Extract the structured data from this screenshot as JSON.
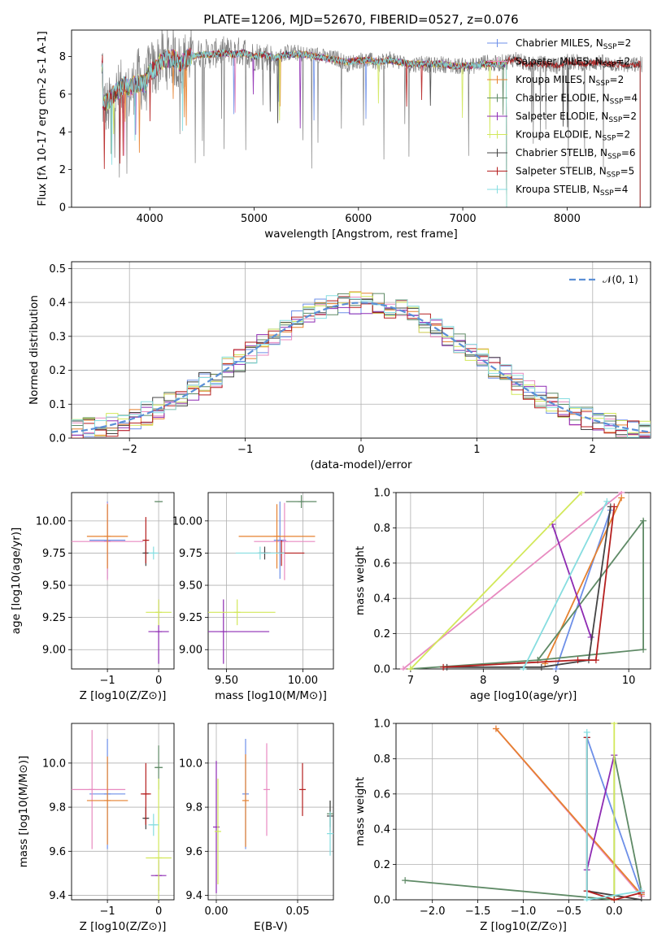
{
  "figure": {
    "title": "PLATE=1206, MJD=52670, FIBERID=0527, z=0.076"
  },
  "series_styles": [
    {
      "name": "Chabrier MILES, N$_{SSP}$=2",
      "legend_text": "Chabrier MILES, N",
      "legend_sub": "SSP",
      "legend_tail": "=2",
      "color": "#6d8fe8"
    },
    {
      "name": "Salpeter MILES, N$_{SSP}$=2",
      "legend_text": "Salpeter MILES, N",
      "legend_sub": "SSP",
      "legend_tail": "=2",
      "color": "#e88ac0"
    },
    {
      "name": "Kroupa MILES, N$_{SSP}$=2",
      "legend_text": "Kroupa MILES, N",
      "legend_sub": "SSP",
      "legend_tail": "=2",
      "color": "#e6812f"
    },
    {
      "name": "Chabrier ELODIE, N$_{SSP}$=4",
      "legend_text": "Chabrier ELODIE, N",
      "legend_sub": "SSP",
      "legend_tail": "=4",
      "color": "#5f8a66"
    },
    {
      "name": "Salpeter ELODIE, N$_{SSP}$=2",
      "legend_text": "Salpeter ELODIE, N",
      "legend_sub": "SSP",
      "legend_tail": "=2",
      "color": "#8e2bb3"
    },
    {
      "name": "Kroupa ELODIE, N$_{SSP}$=2",
      "legend_text": "Kroupa ELODIE, N",
      "legend_sub": "SSP",
      "legend_tail": "=2",
      "color": "#d2e85a"
    },
    {
      "name": "Chabrier STELIB, N$_{SSP}$=6",
      "legend_text": "Chabrier STELIB, N",
      "legend_sub": "SSP",
      "legend_tail": "=6",
      "color": "#444444"
    },
    {
      "name": "Salpeter STELIB, N$_{SSP}$=5",
      "legend_text": "Salpeter STELIB, N",
      "legend_sub": "SSP",
      "legend_tail": "=5",
      "color": "#b51f1f"
    },
    {
      "name": "Kroupa STELIB, N$_{SSP}$=4",
      "legend_text": "Kroupa STELIB, N",
      "legend_sub": "SSP",
      "legend_tail": "=4",
      "color": "#86dde0"
    }
  ],
  "chart_data": [
    {
      "id": "spectrum",
      "type": "line",
      "xlabel": "wavelength [Angstrom, rest frame]",
      "ylabel": "Flux [$f_\\lambda 10^{-17}$ erg cm$^{-2}$ s$^{-1}$ A$^{-1}$]",
      "xlim": [
        3250,
        8800
      ],
      "ylim": [
        0,
        9.4
      ],
      "xticks": [
        4000,
        5000,
        6000,
        7000,
        8000
      ],
      "yticks": [
        0,
        2,
        4,
        6,
        8
      ],
      "grid": false,
      "legend_loc": "right",
      "data_color": "#808080",
      "data_points": [
        [
          3550,
          5.6
        ],
        [
          3600,
          5.2
        ],
        [
          3650,
          5.9
        ],
        [
          3700,
          6.1
        ],
        [
          3750,
          6.4
        ],
        [
          3800,
          6.0
        ],
        [
          3850,
          6.5
        ],
        [
          3900,
          7.0
        ],
        [
          3950,
          6.2
        ],
        [
          4000,
          7.4
        ],
        [
          4050,
          7.2
        ],
        [
          4100,
          8.0
        ],
        [
          4150,
          7.7
        ],
        [
          4200,
          8.1
        ],
        [
          4250,
          7.8
        ],
        [
          4300,
          7.5
        ],
        [
          4350,
          7.9
        ],
        [
          4400,
          8.1
        ],
        [
          4500,
          8.2
        ],
        [
          4600,
          8.1
        ],
        [
          4700,
          8.3
        ],
        [
          4800,
          8.2
        ],
        [
          4900,
          8.3
        ],
        [
          5000,
          8.0
        ],
        [
          5100,
          8.1
        ],
        [
          5200,
          7.8
        ],
        [
          5300,
          8.2
        ],
        [
          5400,
          8.2
        ],
        [
          5500,
          8.1
        ],
        [
          5600,
          8.1
        ],
        [
          5700,
          7.9
        ],
        [
          5800,
          7.9
        ],
        [
          5900,
          7.6
        ],
        [
          6000,
          7.8
        ],
        [
          6100,
          7.8
        ],
        [
          6200,
          7.6
        ],
        [
          6300,
          7.9
        ],
        [
          6400,
          7.7
        ],
        [
          6500,
          7.5
        ],
        [
          6600,
          7.7
        ],
        [
          6700,
          7.5
        ],
        [
          6800,
          7.6
        ],
        [
          6900,
          7.5
        ],
        [
          7000,
          7.5
        ],
        [
          7100,
          7.5
        ],
        [
          7200,
          7.7
        ],
        [
          7300,
          7.6
        ],
        [
          7400,
          7.7
        ],
        [
          7500,
          7.9
        ],
        [
          7600,
          7.6
        ],
        [
          7700,
          7.6
        ],
        [
          7800,
          7.6
        ],
        [
          7900,
          7.5
        ],
        [
          8000,
          7.7
        ],
        [
          8100,
          7.7
        ],
        [
          8200,
          7.6
        ],
        [
          8300,
          7.7
        ],
        [
          8400,
          7.6
        ],
        [
          8500,
          7.6
        ],
        [
          8600,
          7.5
        ],
        [
          8700,
          7.6
        ]
      ],
      "model_points": [
        [
          3550,
          5.6
        ],
        [
          3600,
          5.6
        ],
        [
          3650,
          6.0
        ],
        [
          3700,
          6.2
        ],
        [
          3750,
          6.5
        ],
        [
          3800,
          6.3
        ],
        [
          3850,
          6.5
        ],
        [
          3900,
          6.6
        ],
        [
          3950,
          6.5
        ],
        [
          4000,
          7.2
        ],
        [
          4050,
          7.3
        ],
        [
          4100,
          7.7
        ],
        [
          4150,
          7.8
        ],
        [
          4200,
          7.9
        ],
        [
          4250,
          7.9
        ],
        [
          4300,
          7.6
        ],
        [
          4350,
          7.9
        ],
        [
          4400,
          8.0
        ],
        [
          4500,
          8.1
        ],
        [
          4600,
          8.1
        ],
        [
          4700,
          8.2
        ],
        [
          4800,
          8.1
        ],
        [
          4900,
          8.2
        ],
        [
          5000,
          8.0
        ],
        [
          5100,
          8.1
        ],
        [
          5200,
          7.9
        ],
        [
          5300,
          8.1
        ],
        [
          5400,
          8.1
        ],
        [
          5500,
          8.1
        ],
        [
          5600,
          8.0
        ],
        [
          5700,
          7.9
        ],
        [
          5800,
          7.8
        ],
        [
          5900,
          7.7
        ],
        [
          6000,
          7.8
        ],
        [
          6100,
          7.8
        ],
        [
          6200,
          7.7
        ],
        [
          6300,
          7.8
        ],
        [
          6400,
          7.7
        ],
        [
          6500,
          7.6
        ],
        [
          6600,
          7.6
        ],
        [
          6700,
          7.6
        ],
        [
          6800,
          7.6
        ],
        [
          6900,
          7.5
        ],
        [
          7000,
          7.5
        ],
        [
          7100,
          7.5
        ],
        [
          7200,
          7.6
        ],
        [
          7300,
          7.6
        ],
        [
          7400,
          7.6
        ]
      ]
    },
    {
      "id": "residuals",
      "type": "area",
      "xlabel": "(data-model)/error",
      "ylabel": "Normed distribution",
      "xlim": [
        -2.5,
        2.5
      ],
      "ylim": [
        0,
        0.52
      ],
      "xticks": [
        -2,
        -1,
        0,
        1,
        2
      ],
      "yticks": [
        0.0,
        0.1,
        0.2,
        0.3,
        0.4,
        0.5
      ],
      "grid": true,
      "legend": "$\\mathcal{N}(0,1)$",
      "legend_loc": "top-right",
      "normal_color": "#5b8fd6",
      "bin_width": 0.1
    },
    {
      "id": "age_vs_z",
      "type": "scatter",
      "xlabel": "Z [log$_{10}$(Z/Z$_\\odot$)]",
      "ylabel": "age  [log$_{10}$(age/yr)]",
      "xlim": [
        -1.7,
        0.3
      ],
      "ylim": [
        8.85,
        10.22
      ],
      "xticks": [
        -1,
        0
      ],
      "yticks": [
        9.0,
        9.25,
        9.5,
        9.75,
        10.0
      ],
      "grid": true,
      "points": [
        {
          "series": 0,
          "x": -1.0,
          "y": 9.85,
          "xerr": 0.35,
          "yerr": 0.3
        },
        {
          "series": 1,
          "x": -1.0,
          "y": 9.84,
          "xerr": 0.7,
          "yerr": 0.3
        },
        {
          "series": 2,
          "x": -1.0,
          "y": 9.88,
          "xerr": 0.4,
          "yerr": 0.25
        },
        {
          "series": 3,
          "x": 0.0,
          "y": 10.15,
          "xerr": 0.08,
          "yerr": 0.0
        },
        {
          "series": 4,
          "x": 0.0,
          "y": 9.14,
          "xerr": 0.2,
          "yerr": 0.25
        },
        {
          "series": 5,
          "x": 0.0,
          "y": 9.29,
          "xerr": 0.25,
          "yerr": 0.1
        },
        {
          "series": 6,
          "x": -0.25,
          "y": 9.75,
          "xerr": 0.05,
          "yerr": 0.1
        },
        {
          "series": 7,
          "x": -0.25,
          "y": 9.85,
          "xerr": 0.05,
          "yerr": 0.18
        },
        {
          "series": 8,
          "x": -0.1,
          "y": 9.75,
          "xerr": 0.1,
          "yerr": 0.05
        }
      ]
    },
    {
      "id": "age_vs_mass",
      "type": "scatter",
      "xlabel": "mass [log$_{10}$(M/M$_\\odot$)]",
      "ylabel": "",
      "xlim": [
        9.38,
        10.2
      ],
      "ylim": [
        8.85,
        10.22
      ],
      "xticks": [
        9.5,
        10.0
      ],
      "yticks": [
        9.0,
        9.25,
        9.5,
        9.75,
        10.0
      ],
      "grid": true,
      "points": [
        {
          "series": 0,
          "x": 9.85,
          "y": 9.85,
          "xerr": 0.04,
          "yerr": 0.3
        },
        {
          "series": 1,
          "x": 9.88,
          "y": 9.84,
          "xerr": 0.2,
          "yerr": 0.3
        },
        {
          "series": 2,
          "x": 9.83,
          "y": 9.88,
          "xerr": 0.25,
          "yerr": 0.25
        },
        {
          "series": 3,
          "x": 9.99,
          "y": 10.15,
          "xerr": 0.1,
          "yerr": 0.05
        },
        {
          "series": 4,
          "x": 9.48,
          "y": 9.14,
          "xerr": 0.3,
          "yerr": 0.25
        },
        {
          "series": 5,
          "x": 9.57,
          "y": 9.29,
          "xerr": 0.25,
          "yerr": 0.1
        },
        {
          "series": 6,
          "x": 9.75,
          "y": 9.75,
          "xerr": 0.04,
          "yerr": 0.05
        },
        {
          "series": 7,
          "x": 9.86,
          "y": 9.75,
          "xerr": 0.15,
          "yerr": 0.1
        },
        {
          "series": 8,
          "x": 9.72,
          "y": 9.75,
          "xerr": 0.16,
          "yerr": 0.05
        }
      ]
    },
    {
      "id": "weight_vs_age",
      "type": "line",
      "xlabel": "age  [log$_{10}$(age/yr)]",
      "ylabel": "mass weight",
      "xlim": [
        6.8,
        10.3
      ],
      "ylim": [
        0,
        1.0
      ],
      "xticks": [
        7,
        8,
        9,
        10
      ],
      "yticks": [
        0.0,
        0.2,
        0.4,
        0.6,
        0.8,
        1.0
      ],
      "grid": true,
      "series": [
        {
          "series": 0,
          "x": [
            9.0,
            9.75
          ],
          "y": [
            0.0,
            0.9
          ]
        },
        {
          "series": 1,
          "x": [
            6.9,
            9.9
          ],
          "y": [
            0.0,
            1.0
          ]
        },
        {
          "series": 2,
          "x": [
            8.85,
            9.9
          ],
          "y": [
            0.03,
            0.97
          ]
        },
        {
          "series": 3,
          "x": [
            8.75,
            10.2,
            10.2,
            8.75,
            7.0
          ],
          "y": [
            0.05,
            0.84,
            0.11,
            0.05,
            0.0
          ]
        },
        {
          "series": 4,
          "x": [
            8.95,
            9.48
          ],
          "y": [
            0.82,
            0.18
          ]
        },
        {
          "series": 5,
          "x": [
            7.0,
            9.35
          ],
          "y": [
            0.0,
            1.0
          ]
        },
        {
          "series": 6,
          "x": [
            7.5,
            8.8,
            9.45,
            9.75
          ],
          "y": [
            0.01,
            0.01,
            0.05,
            0.92
          ]
        },
        {
          "series": 7,
          "x": [
            7.45,
            9.3,
            9.55,
            9.8
          ],
          "y": [
            0.01,
            0.05,
            0.05,
            0.92
          ]
        },
        {
          "series": 8,
          "x": [
            8.55,
            9.7
          ],
          "y": [
            0.0,
            0.95
          ]
        }
      ]
    },
    {
      "id": "mass_vs_z",
      "type": "scatter",
      "xlabel": "Z [log$_{10}$(Z/Z$_\\odot$)]",
      "ylabel": "mass [log$_{10}$(M/M$_\\odot$)]",
      "xlim": [
        -1.7,
        0.3
      ],
      "ylim": [
        9.38,
        10.18
      ],
      "xticks": [
        -1,
        0
      ],
      "yticks": [
        9.4,
        9.6,
        9.8,
        10.0
      ],
      "grid": true,
      "points": [
        {
          "series": 0,
          "x": -1.0,
          "y": 9.86,
          "xerr": 0.35,
          "yerr": 0.25
        },
        {
          "series": 1,
          "x": -1.3,
          "y": 9.88,
          "xerr": 0.65,
          "yerr": 0.27
        },
        {
          "series": 2,
          "x": -1.0,
          "y": 9.83,
          "xerr": 0.4,
          "yerr": 0.2
        },
        {
          "series": 3,
          "x": 0.0,
          "y": 9.98,
          "xerr": 0.08,
          "yerr": 0.1
        },
        {
          "series": 4,
          "x": 0.0,
          "y": 9.49,
          "xerr": 0.15,
          "yerr": 0.07
        },
        {
          "series": 5,
          "x": 0.0,
          "y": 9.57,
          "xerr": 0.25,
          "yerr": 0.36
        },
        {
          "series": 6,
          "x": -0.25,
          "y": 9.75,
          "xerr": 0.05,
          "yerr": 0.05
        },
        {
          "series": 7,
          "x": -0.25,
          "y": 9.86,
          "xerr": 0.1,
          "yerr": 0.14
        },
        {
          "series": 8,
          "x": -0.1,
          "y": 9.72,
          "xerr": 0.1,
          "yerr": 0.05
        }
      ]
    },
    {
      "id": "mass_vs_ebv",
      "type": "scatter",
      "xlabel": "E(B-V)",
      "ylabel": "",
      "xlim": [
        -0.005,
        0.072
      ],
      "ylim": [
        9.38,
        10.18
      ],
      "xticks": [
        0.0,
        0.05
      ],
      "yticks": [
        9.4,
        9.6,
        9.8,
        10.0
      ],
      "grid": true,
      "points": [
        {
          "series": 0,
          "x": 0.018,
          "y": 9.86,
          "xerr": 0.0,
          "yerr": 0.25
        },
        {
          "series": 1,
          "x": 0.031,
          "y": 9.88,
          "xerr": 0.0,
          "yerr": 0.21
        },
        {
          "series": 2,
          "x": 0.018,
          "y": 9.83,
          "xerr": 0.0,
          "yerr": 0.21
        },
        {
          "series": 3,
          "x": 0.07,
          "y": 9.77,
          "xerr": 0.0,
          "yerr": 0.06
        },
        {
          "series": 4,
          "x": 0.0,
          "y": 9.71,
          "xerr": 0.0,
          "yerr": 0.3
        },
        {
          "series": 5,
          "x": 0.001,
          "y": 9.69,
          "xerr": 0.0,
          "yerr": 0.24
        },
        {
          "series": 6,
          "x": 0.07,
          "y": 9.76,
          "xerr": 0.0,
          "yerr": 0.07
        },
        {
          "series": 7,
          "x": 0.053,
          "y": 9.88,
          "xerr": 0.0,
          "yerr": 0.12
        },
        {
          "series": 8,
          "x": 0.07,
          "y": 9.68,
          "xerr": 0.0,
          "yerr": 0.1
        }
      ]
    },
    {
      "id": "weight_vs_z",
      "type": "line",
      "xlabel": "Z [log$_{10}$(Z/Z$_\\odot$)]",
      "ylabel": "mass weight",
      "xlim": [
        -2.4,
        0.4
      ],
      "ylim": [
        0,
        1.0
      ],
      "xticks": [
        -2.0,
        -1.5,
        -1.0,
        -0.5,
        0.0
      ],
      "yticks": [
        0.0,
        0.2,
        0.4,
        0.6,
        0.8,
        1.0
      ],
      "grid": true,
      "series": [
        {
          "series": 0,
          "x": [
            -0.3,
            0.3
          ],
          "y": [
            0.92,
            0.03
          ]
        },
        {
          "series": 1,
          "x": [
            -1.3,
            0.3
          ],
          "y": [
            0.97,
            0.02
          ]
        },
        {
          "series": 2,
          "x": [
            -1.3,
            0.3
          ],
          "y": [
            0.97,
            0.03
          ]
        },
        {
          "series": 3,
          "x": [
            -2.3,
            0.0,
            0.0,
            0.3
          ],
          "y": [
            0.11,
            0.0,
            0.82,
            0.05
          ]
        },
        {
          "series": 4,
          "x": [
            -0.3,
            0.0
          ],
          "y": [
            0.17,
            0.82
          ]
        },
        {
          "series": 5,
          "x": [
            0.0,
            0.0
          ],
          "y": [
            0.0,
            1.0
          ]
        },
        {
          "series": 6,
          "x": [
            -0.3,
            -0.3,
            0.3
          ],
          "y": [
            0.92,
            0.05,
            0.0
          ]
        },
        {
          "series": 7,
          "x": [
            -0.3,
            -0.3,
            0.0,
            0.3
          ],
          "y": [
            0.92,
            0.05,
            0.0,
            0.04
          ]
        },
        {
          "series": 8,
          "x": [
            -0.3,
            -0.3,
            0.3
          ],
          "y": [
            0.95,
            0.0,
            0.05
          ]
        }
      ]
    }
  ]
}
